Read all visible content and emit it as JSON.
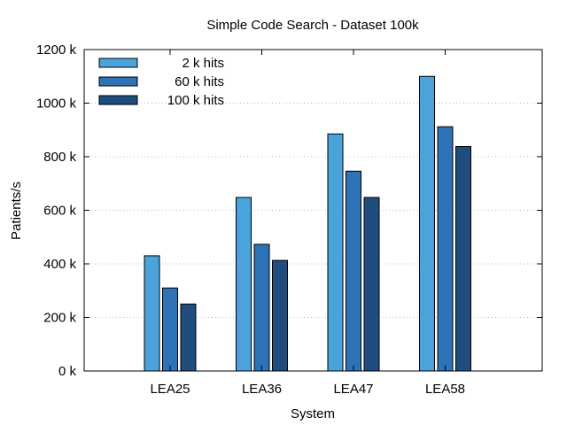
{
  "chart_data": {
    "type": "bar",
    "title": "Simple Code Search - Dataset 100k",
    "xlabel": "System",
    "ylabel": "Patients/s",
    "categories": [
      "LEA25",
      "LEA36",
      "LEA47",
      "LEA58"
    ],
    "series": [
      {
        "name": "2 k hits",
        "color": "#4aa3db",
        "values": [
          430,
          648,
          885,
          1100
        ]
      },
      {
        "name": "60 k hits",
        "color": "#2e72b8",
        "values": [
          310,
          473,
          746,
          912
        ]
      },
      {
        "name": "100 k hits",
        "color": "#1f4d7e",
        "values": [
          250,
          413,
          648,
          838
        ]
      }
    ],
    "ylim": [
      0,
      1200
    ],
    "yticks": [
      {
        "value": 0,
        "label": "0 k"
      },
      {
        "value": 200,
        "label": "200 k"
      },
      {
        "value": 400,
        "label": "400 k"
      },
      {
        "value": 600,
        "label": "600 k"
      },
      {
        "value": 800,
        "label": "800 k"
      },
      {
        "value": 1000,
        "label": "1000 k"
      },
      {
        "value": 1200,
        "label": "1200 k"
      }
    ],
    "grid": true,
    "legend_position": "top-left"
  }
}
